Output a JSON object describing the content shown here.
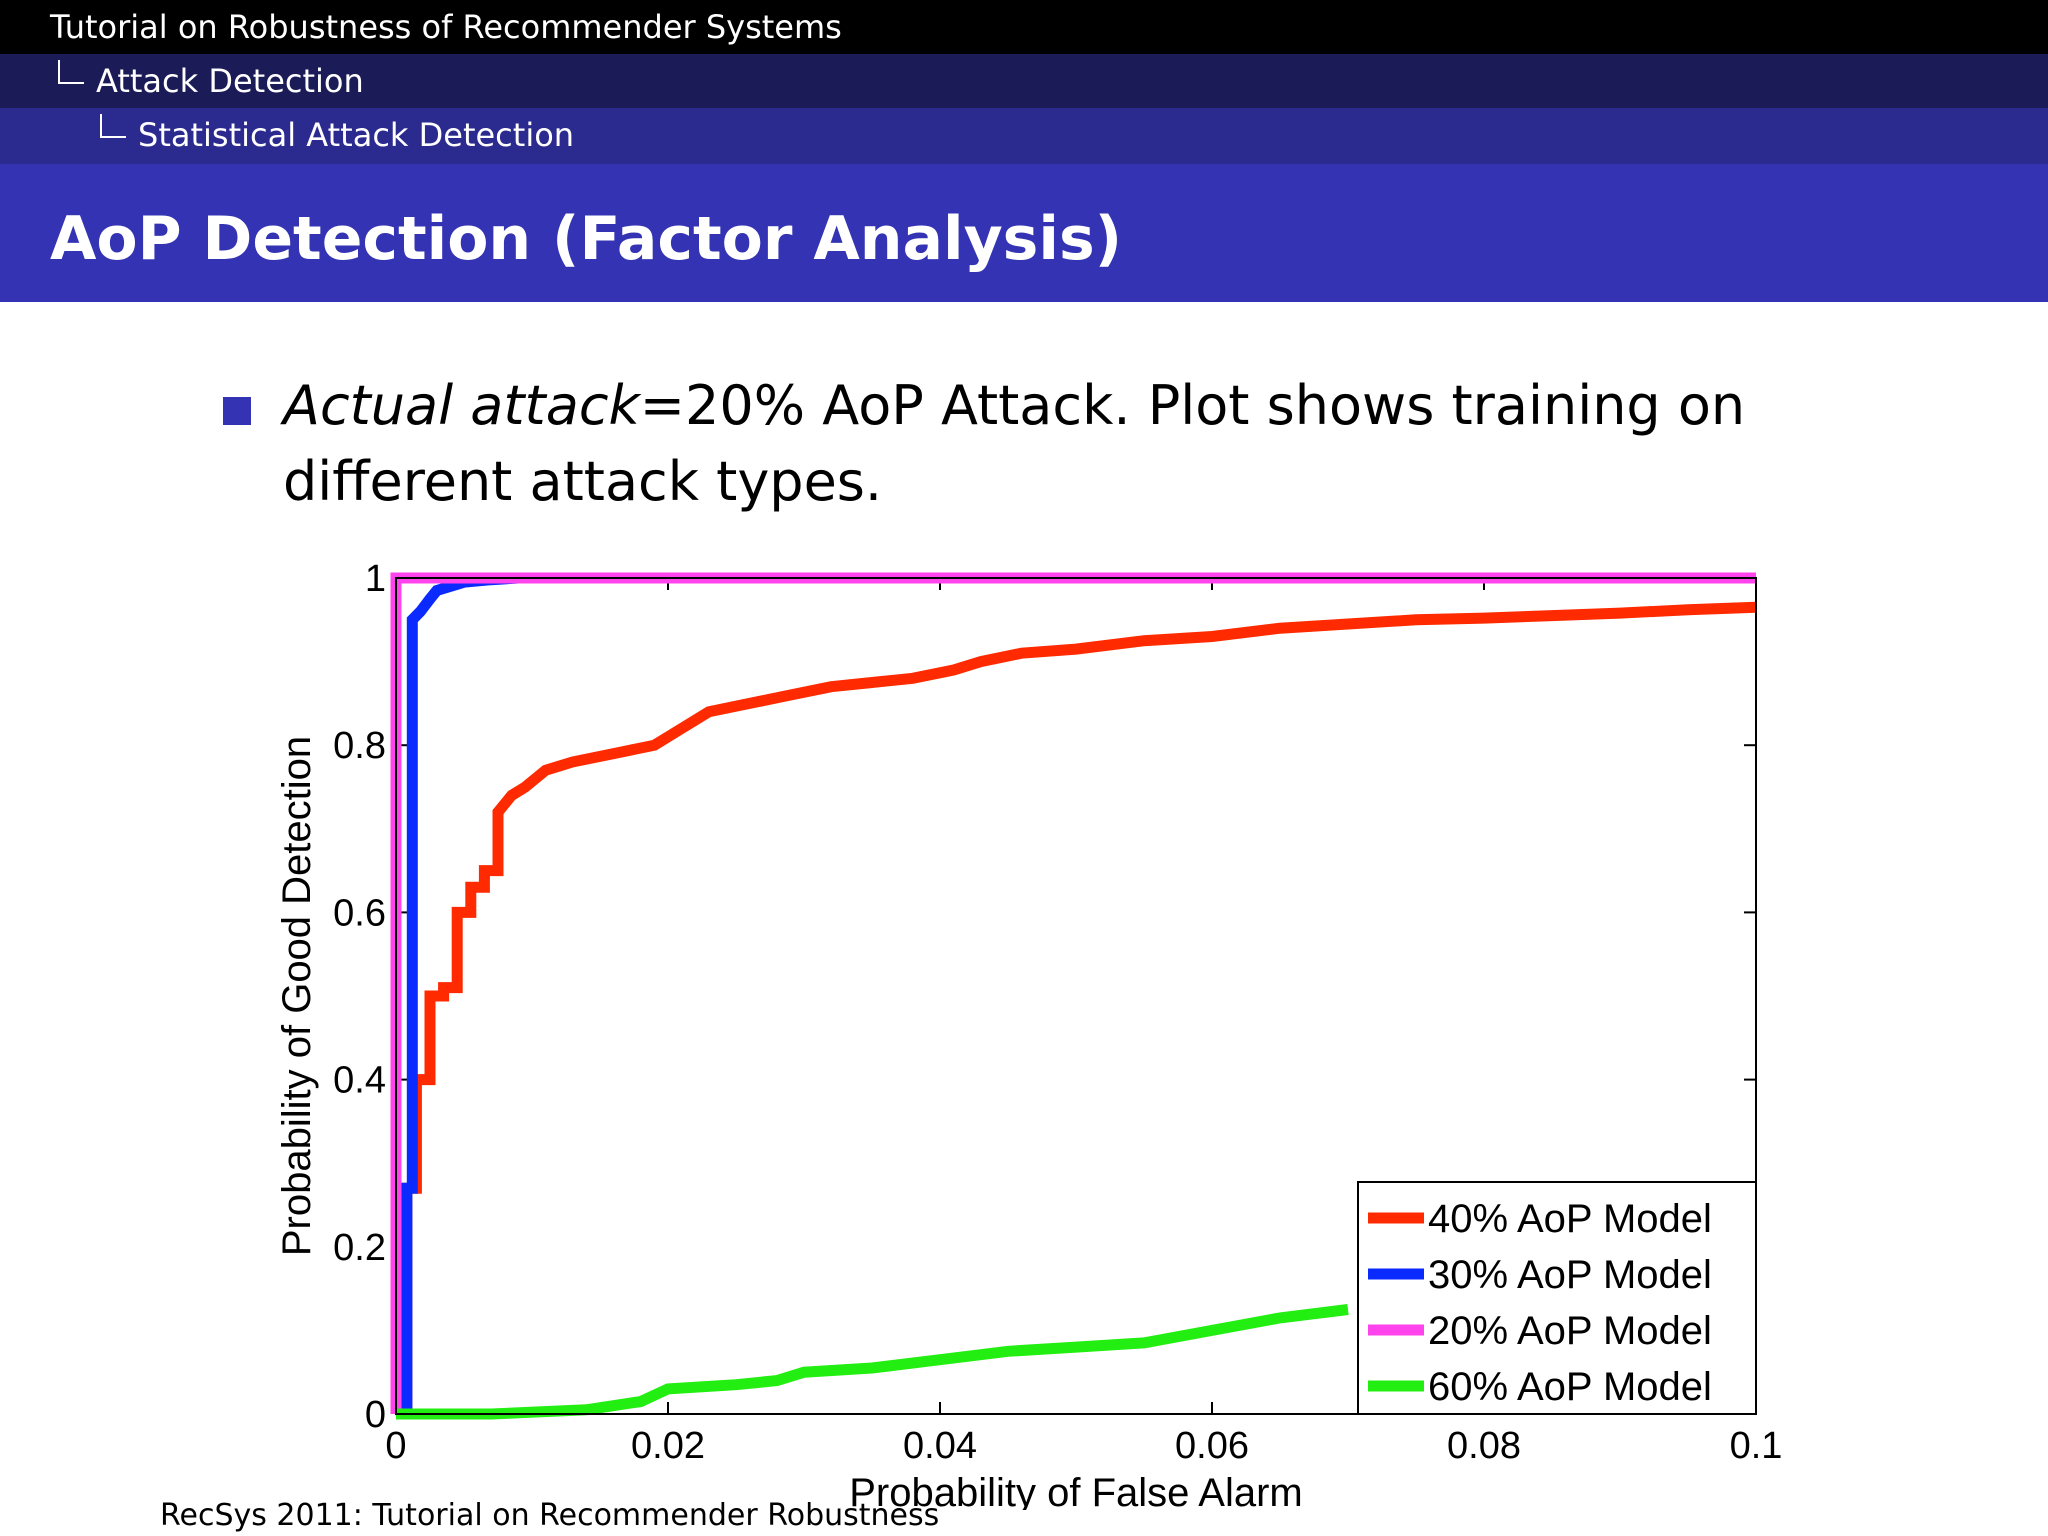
{
  "header": {
    "breadcrumb": [
      "Tutorial on Robustness of Recommender Systems",
      "Attack Detection",
      "Statistical Attack Detection"
    ]
  },
  "slide": {
    "title": "AoP Detection (Factor Analysis)",
    "bullet_emph": "Actual attack",
    "bullet_rest": "=20% AoP Attack.  Plot shows training on different attack types."
  },
  "footer": {
    "text": "RecSys 2011: Tutorial on Recommender Robustness"
  },
  "colors": {
    "frame_black": "#000000",
    "header_dark": "#1b1b57",
    "header_mid": "#2a2a8f",
    "title_blue": "#3333b3"
  },
  "chart_data": {
    "type": "line",
    "xlabel": "Probability of False Alarm",
    "ylabel": "Probability of Good Detection",
    "xlim": [
      0,
      0.1
    ],
    "ylim": [
      0,
      1
    ],
    "xticks": [
      "0",
      "0.02",
      "0.04",
      "0.06",
      "0.08",
      "0.1"
    ],
    "yticks": [
      "0",
      "0.2",
      "0.4",
      "0.6",
      "0.8",
      "1"
    ],
    "legend_position": "bottom-right",
    "series": [
      {
        "name": "40% AoP Model",
        "color": "#ff2a00",
        "x": [
          0,
          0.0008,
          0.0008,
          0.0015,
          0.0015,
          0.0025,
          0.0025,
          0.0035,
          0.0035,
          0.0045,
          0.0045,
          0.0055,
          0.0055,
          0.0065,
          0.0065,
          0.0075,
          0.0075,
          0.0085,
          0.0095,
          0.011,
          0.013,
          0.016,
          0.019,
          0.021,
          0.023,
          0.026,
          0.029,
          0.032,
          0.035,
          0.038,
          0.041,
          0.043,
          0.046,
          0.05,
          0.055,
          0.06,
          0.065,
          0.07,
          0.075,
          0.08,
          0.085,
          0.09,
          0.095,
          0.1
        ],
        "y": [
          0,
          0,
          0.27,
          0.27,
          0.4,
          0.4,
          0.5,
          0.5,
          0.51,
          0.51,
          0.6,
          0.6,
          0.63,
          0.63,
          0.65,
          0.65,
          0.72,
          0.74,
          0.75,
          0.77,
          0.78,
          0.79,
          0.8,
          0.82,
          0.84,
          0.85,
          0.86,
          0.87,
          0.875,
          0.88,
          0.89,
          0.9,
          0.91,
          0.915,
          0.925,
          0.93,
          0.94,
          0.945,
          0.95,
          0.952,
          0.955,
          0.958,
          0.962,
          0.965
        ]
      },
      {
        "name": "30% AoP Model",
        "color": "#0a2aff",
        "x": [
          0,
          0.0008,
          0.0008,
          0.0012,
          0.0012,
          0.0018,
          0.0025,
          0.003,
          0.004,
          0.005,
          0.007,
          0.009,
          0.014
        ],
        "y": [
          0,
          0,
          0.27,
          0.27,
          0.95,
          0.96,
          0.975,
          0.985,
          0.99,
          0.995,
          0.998,
          1.0,
          1.0
        ]
      },
      {
        "name": "20% AoP Model",
        "color": "#ff44ee",
        "x": [
          0,
          0,
          0.1
        ],
        "y": [
          0,
          1,
          1
        ]
      },
      {
        "name": "60% AoP Model",
        "color": "#22ee11",
        "x": [
          0,
          0.007,
          0.014,
          0.018,
          0.02,
          0.025,
          0.028,
          0.03,
          0.035,
          0.04,
          0.045,
          0.05,
          0.055,
          0.06,
          0.065,
          0.07
        ],
        "y": [
          0,
          0,
          0.005,
          0.015,
          0.03,
          0.035,
          0.04,
          0.05,
          0.055,
          0.065,
          0.075,
          0.08,
          0.085,
          0.1,
          0.115,
          0.125
        ]
      }
    ]
  }
}
